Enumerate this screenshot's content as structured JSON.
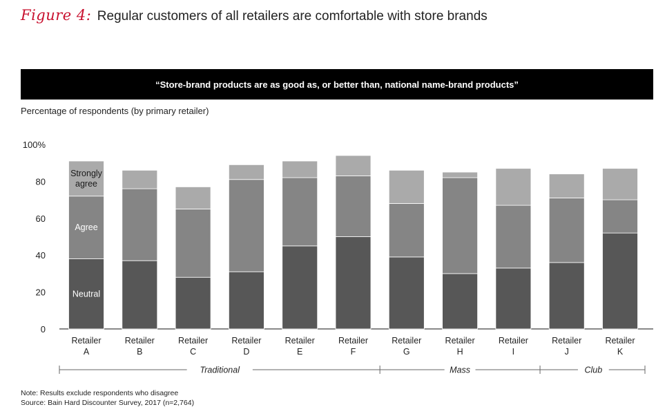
{
  "figure": {
    "label": "Figure 4:",
    "title": "Regular customers of all retailers are comfortable with store brands"
  },
  "banner": "“Store-brand products are as good as, or better than, national name-brand products”",
  "notes": {
    "note": "Note: Results exclude respondents who disagree",
    "source": "Source: Bain Hard Discounter Survey, 2017 (n=2,764)"
  },
  "chart_data": {
    "type": "bar",
    "stacked": true,
    "title": "",
    "ylabel": "Percentage of respondents (by primary retailer)",
    "ylim": [
      0,
      100
    ],
    "yticks": [
      "0",
      "20",
      "40",
      "60",
      "80",
      "100%"
    ],
    "categories": [
      "Retailer A",
      "Retailer B",
      "Retailer C",
      "Retailer D",
      "Retailer E",
      "Retailer F",
      "Retailer G",
      "Retailer H",
      "Retailer I",
      "Retailer J",
      "Retailer K"
    ],
    "category_lines": [
      [
        "Retailer",
        "A"
      ],
      [
        "Retailer",
        "B"
      ],
      [
        "Retailer",
        "C"
      ],
      [
        "Retailer",
        "D"
      ],
      [
        "Retailer",
        "E"
      ],
      [
        "Retailer",
        "F"
      ],
      [
        "Retailer",
        "G"
      ],
      [
        "Retailer",
        "H"
      ],
      [
        "Retailer",
        "I"
      ],
      [
        "Retailer",
        "J"
      ],
      [
        "Retailer",
        "K"
      ]
    ],
    "series": [
      {
        "name": "Neutral",
        "color": "#575757",
        "values": [
          38,
          37,
          28,
          31,
          45,
          50,
          39,
          30,
          33,
          36,
          52
        ]
      },
      {
        "name": "Agree",
        "color": "#858585",
        "values": [
          34,
          39,
          37,
          50,
          37,
          33,
          29,
          52,
          34,
          35,
          18
        ]
      },
      {
        "name": "Strongly agree",
        "color": "#aaaaaa",
        "values": [
          19,
          10,
          12,
          8,
          9,
          11,
          18,
          3,
          20,
          13,
          17
        ]
      }
    ],
    "series_label_lines": [
      [
        "Neutral"
      ],
      [
        "Agree"
      ],
      [
        "Strongly",
        "agree"
      ]
    ],
    "groups": [
      {
        "label": "Traditional",
        "categories": [
          0,
          5
        ]
      },
      {
        "label": "Mass",
        "categories": [
          6,
          8
        ]
      },
      {
        "label": "Club",
        "categories": [
          9,
          10
        ]
      }
    ],
    "grid": false,
    "legend": "inside first bar"
  }
}
